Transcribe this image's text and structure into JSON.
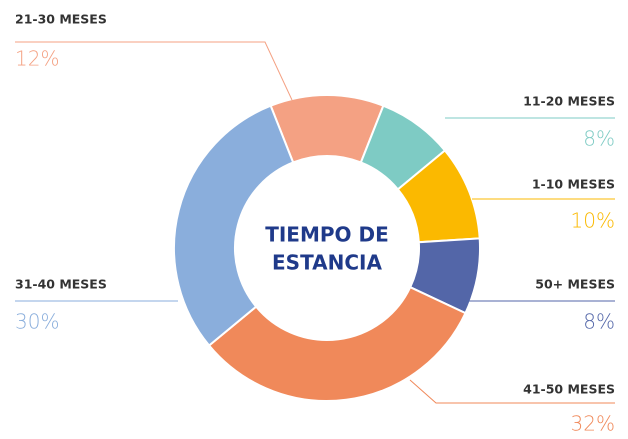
{
  "chart_data": {
    "type": "donut",
    "title_lines": [
      "TIEMPO DE",
      "ESTANCIA"
    ],
    "categories": [
      "21-30 MESES",
      "11-20 MESES",
      "1-10 MESES",
      "50+ MESES",
      "41-50 MESES",
      "31-40 MESES"
    ],
    "values": [
      12,
      8,
      10,
      8,
      32,
      30
    ],
    "value_labels": [
      "12%",
      "8%",
      "10%",
      "8%",
      "32%",
      "30%"
    ],
    "colors": [
      "#f4a183",
      "#7ecbc4",
      "#fbb900",
      "#5366a8",
      "#f0895a",
      "#8aaedc"
    ]
  }
}
